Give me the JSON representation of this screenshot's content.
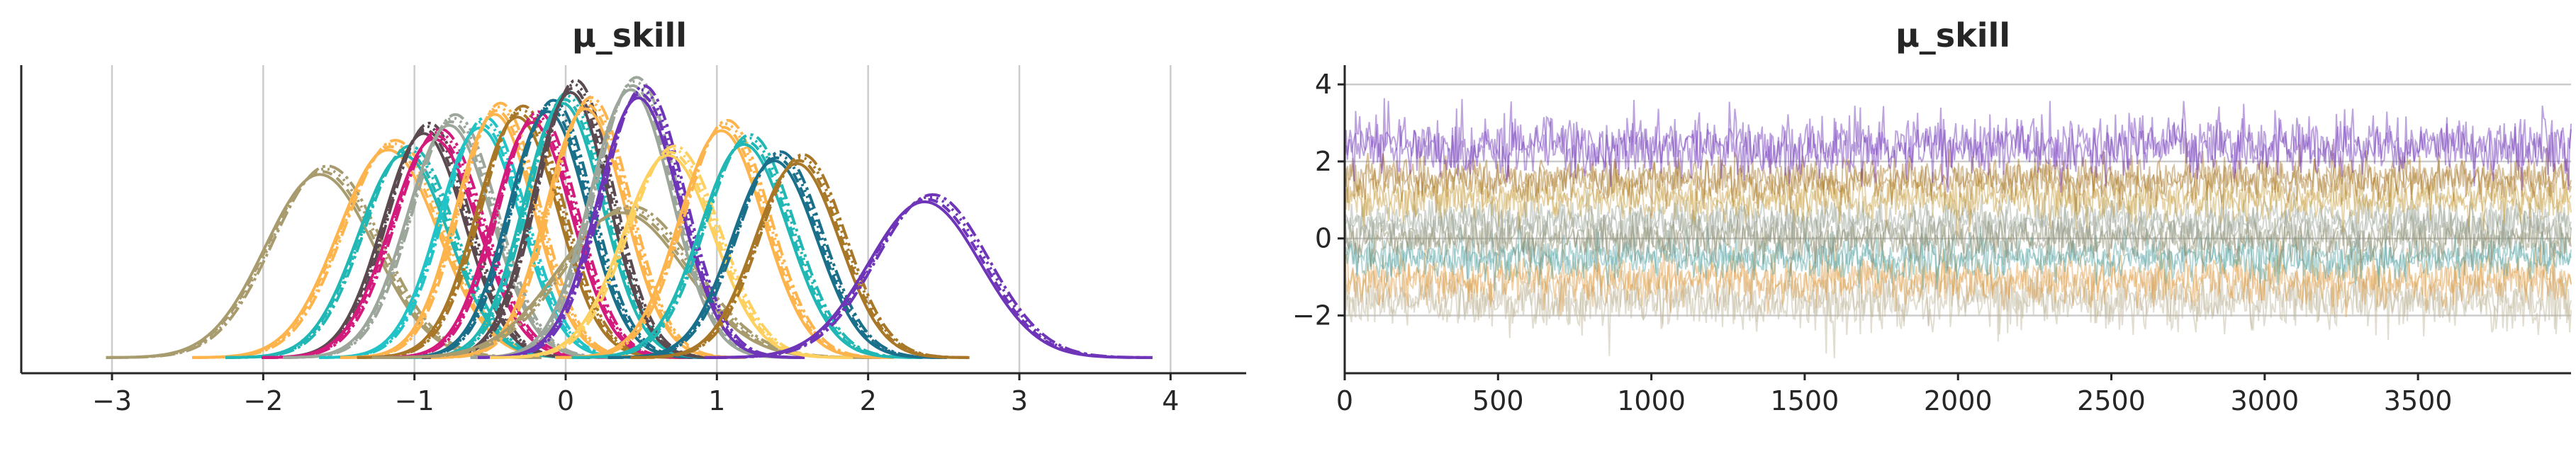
{
  "chart_data": [
    {
      "type": "area",
      "title": "μ_skill",
      "xlabel": "",
      "ylabel": "",
      "xlim": [
        -3.6,
        4.5
      ],
      "xticks": [
        -3,
        -2,
        -1,
        0,
        1,
        2,
        3,
        4
      ],
      "xtick_labels": [
        "−3",
        "−2",
        "−1",
        "0",
        "1",
        "2",
        "3",
        "4"
      ],
      "grid": "x",
      "densities": [
        {
          "mean": -1.6,
          "sd": 0.36,
          "peak": 0.67,
          "color": "#a89c6f"
        },
        {
          "mean": -1.15,
          "sd": 0.33,
          "peak": 0.76,
          "color": "#fdb44d"
        },
        {
          "mean": -1.05,
          "sd": 0.3,
          "peak": 0.74,
          "color": "#20b7b4"
        },
        {
          "mean": -0.92,
          "sd": 0.27,
          "peak": 0.82,
          "color": "#5b4a4f"
        },
        {
          "mean": -0.85,
          "sd": 0.29,
          "peak": 0.8,
          "color": "#d21b7c"
        },
        {
          "mean": -0.75,
          "sd": 0.28,
          "peak": 0.85,
          "color": "#9ca69a"
        },
        {
          "mean": -0.55,
          "sd": 0.27,
          "peak": 0.84,
          "color": "#22c3c7"
        },
        {
          "mean": -0.45,
          "sd": 0.26,
          "peak": 0.89,
          "color": "#fdb44d"
        },
        {
          "mean": -0.3,
          "sd": 0.27,
          "peak": 0.88,
          "color": "#a87727"
        },
        {
          "mean": -0.2,
          "sd": 0.26,
          "peak": 0.86,
          "color": "#d21b7c"
        },
        {
          "mean": -0.1,
          "sd": 0.26,
          "peak": 0.9,
          "color": "#1a6f8a"
        },
        {
          "mean": 0.0,
          "sd": 0.26,
          "peak": 0.93,
          "color": "#20b7b4"
        },
        {
          "mean": 0.05,
          "sd": 0.25,
          "peak": 0.97,
          "color": "#5b4a4f"
        },
        {
          "mean": 0.15,
          "sd": 0.26,
          "peak": 0.91,
          "color": "#fdb44d"
        },
        {
          "mean": 0.4,
          "sd": 0.42,
          "peak": 0.53,
          "color": "#a89c6f"
        },
        {
          "mean": 0.45,
          "sd": 0.27,
          "peak": 0.98,
          "color": "#9ca69a"
        },
        {
          "mean": 0.5,
          "sd": 0.27,
          "peak": 0.95,
          "color": "#6f35b8"
        },
        {
          "mean": 0.7,
          "sd": 0.3,
          "peak": 0.74,
          "color": "#fdd060"
        },
        {
          "mean": 1.05,
          "sd": 0.28,
          "peak": 0.83,
          "color": "#fdb44d"
        },
        {
          "mean": 1.2,
          "sd": 0.29,
          "peak": 0.78,
          "color": "#20b7b4"
        },
        {
          "mean": 1.4,
          "sd": 0.28,
          "peak": 0.72,
          "color": "#1a6f8a"
        },
        {
          "mean": 1.55,
          "sd": 0.28,
          "peak": 0.71,
          "color": "#a87727"
        },
        {
          "mean": 2.4,
          "sd": 0.37,
          "peak": 0.57,
          "color": "#6f35b8"
        }
      ]
    },
    {
      "type": "line",
      "title": "μ_skill",
      "xlabel": "",
      "ylabel": "",
      "xlim": [
        0,
        3999
      ],
      "ylim": [
        -3.5,
        4.5
      ],
      "xticks": [
        0,
        500,
        1000,
        1500,
        2000,
        2500,
        3000,
        3500
      ],
      "xtick_labels": [
        "0",
        "500",
        "1000",
        "1500",
        "2000",
        "2500",
        "3000",
        "3500"
      ],
      "yticks": [
        -2,
        0,
        2,
        4
      ],
      "ytick_labels": [
        "−2",
        "0",
        "2",
        "4"
      ],
      "grid": "y",
      "draws": 4000,
      "traces": [
        {
          "mean": 2.4,
          "sd": 0.37,
          "color": "#6f35b8"
        },
        {
          "mean": 1.55,
          "sd": 0.28,
          "color": "#a87727"
        },
        {
          "mean": 1.05,
          "sd": 0.28,
          "color": "#c9a54a"
        },
        {
          "mean": 0.45,
          "sd": 0.27,
          "color": "#9ca69a"
        },
        {
          "mean": 0.0,
          "sd": 0.28,
          "color": "#8c8b6c"
        },
        {
          "mean": -0.5,
          "sd": 0.27,
          "color": "#5aa6a6"
        },
        {
          "mean": -1.05,
          "sd": 0.31,
          "color": "#e1a04a"
        },
        {
          "mean": -1.6,
          "sd": 0.36,
          "color": "#bdb497"
        }
      ]
    }
  ]
}
